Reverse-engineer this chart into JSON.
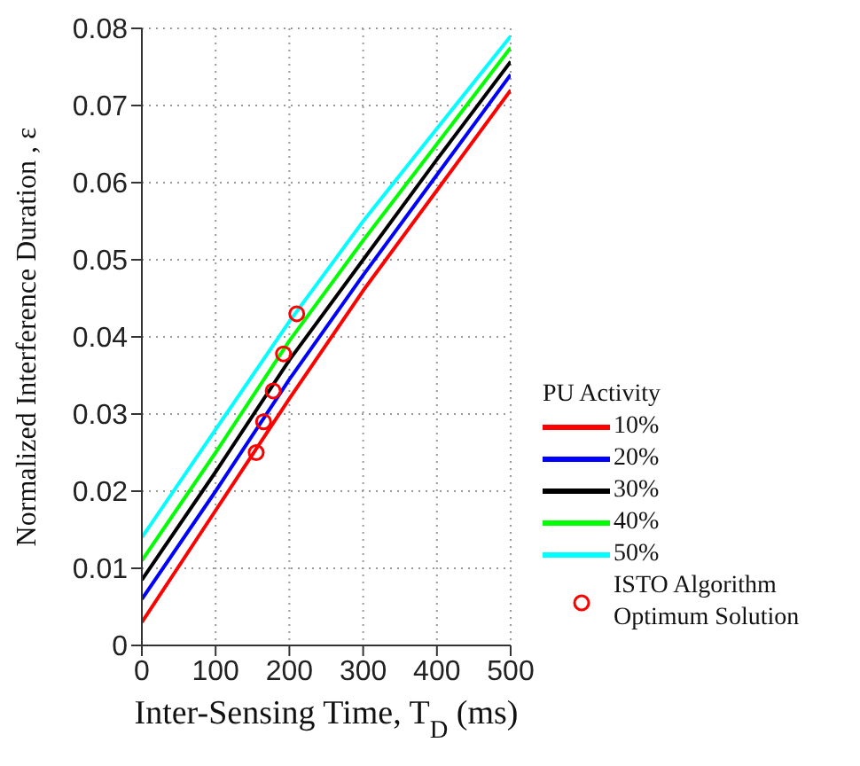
{
  "chart_data": {
    "type": "line",
    "xlabel": "Inter-Sensing Time, T$_{D}$ (ms)",
    "ylabel": "Normalized Interference Duration , ε",
    "legend_title": "PU Activity",
    "x": [
      0,
      100,
      200,
      300,
      400,
      500
    ],
    "series": [
      {
        "name": "10%",
        "color": "#ff0000",
        "values": [
          0.003,
          0.0175,
          0.032,
          0.046,
          0.059,
          0.072
        ]
      },
      {
        "name": "20%",
        "color": "#0000ff",
        "values": [
          0.006,
          0.02,
          0.0345,
          0.048,
          0.061,
          0.074
        ]
      },
      {
        "name": "30%",
        "color": "#000000",
        "values": [
          0.0085,
          0.0225,
          0.037,
          0.05,
          0.063,
          0.0757
        ]
      },
      {
        "name": "40%",
        "color": "#00ff00",
        "values": [
          0.011,
          0.025,
          0.0395,
          0.0525,
          0.065,
          0.0775
        ]
      },
      {
        "name": "50%",
        "color": "#00ffff",
        "values": [
          0.014,
          0.028,
          0.042,
          0.055,
          0.067,
          0.079
        ]
      },
      {
        "name": "ISTO Algorithm Optimum Solution",
        "type": "scatter",
        "marker": "circle",
        "color": "#ff0000",
        "x": [
          155,
          165,
          178,
          192,
          210
        ],
        "values": [
          0.025,
          0.029,
          0.033,
          0.0378,
          0.043
        ]
      }
    ],
    "xlim": [
      0,
      500
    ],
    "xticks": [
      0,
      100,
      200,
      300,
      400,
      500
    ],
    "ylim": [
      0,
      0.08
    ],
    "yticks": [
      0,
      0.01,
      0.02,
      0.03,
      0.04,
      0.05,
      0.06,
      0.07,
      0.08
    ],
    "grid": true,
    "legend": "bottom right",
    "line_style": "solid",
    "marker": "none"
  }
}
